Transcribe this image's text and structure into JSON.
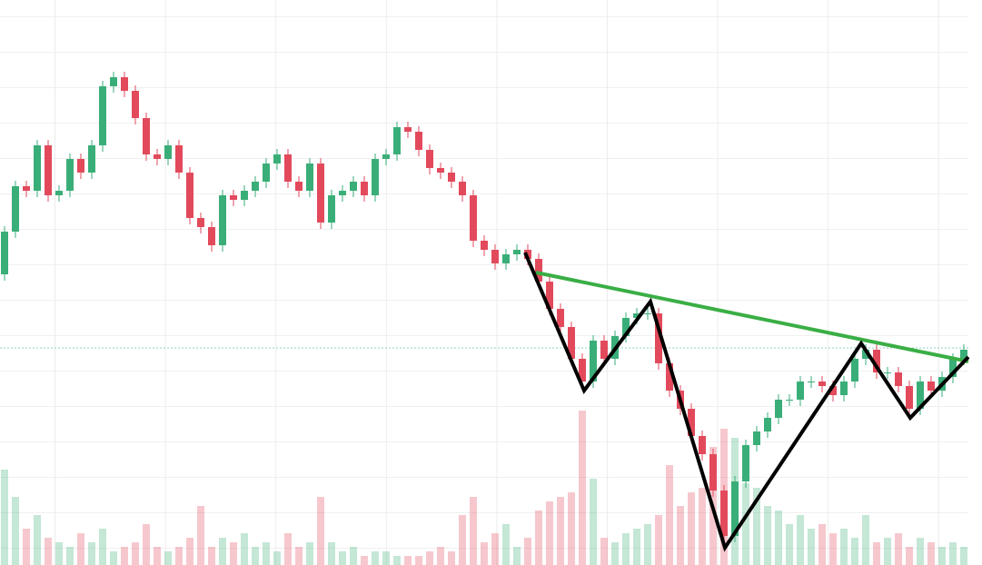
{
  "chart_data": {
    "type": "candlestick",
    "open": [
      320,
      367,
      417,
      412,
      462,
      407,
      412,
      447,
      432,
      462,
      527,
      537,
      522,
      492,
      452,
      447,
      462,
      432,
      382,
      372,
      352,
      407,
      402,
      412,
      422,
      442,
      452,
      422,
      412,
      442,
      377,
      407,
      412,
      422,
      407,
      447,
      452,
      482,
      477,
      457,
      437,
      432,
      422,
      407,
      357,
      347,
      332,
      342,
      347,
      337,
      312,
      282,
      262,
      227,
      202,
      247,
      227,
      252,
      272,
      277,
      277,
      222,
      192,
      172,
      142,
      122,
      82,
      32,
      92,
      132,
      147,
      162,
      182,
      182,
      202,
      202,
      197,
      187,
      202,
      227,
      237,
      212,
      212,
      197,
      172,
      202,
      192,
      207,
      227
    ],
    "high": [
      373,
      423,
      423,
      468,
      468,
      418,
      453,
      453,
      468,
      533,
      543,
      543,
      528,
      498,
      458,
      468,
      468,
      438,
      388,
      378,
      413,
      413,
      418,
      428,
      448,
      458,
      458,
      428,
      448,
      448,
      413,
      418,
      428,
      428,
      453,
      458,
      488,
      488,
      483,
      463,
      443,
      438,
      428,
      413,
      363,
      353,
      348,
      353,
      353,
      343,
      318,
      288,
      268,
      233,
      253,
      253,
      258,
      278,
      283,
      283,
      283,
      228,
      198,
      178,
      148,
      128,
      88,
      98,
      138,
      153,
      168,
      188,
      188,
      208,
      208,
      208,
      203,
      208,
      233,
      243,
      243,
      218,
      218,
      203,
      208,
      208,
      213,
      233,
      243
    ],
    "low": [
      313,
      360,
      405,
      405,
      400,
      400,
      405,
      425,
      425,
      455,
      520,
      515,
      485,
      445,
      440,
      440,
      425,
      375,
      365,
      345,
      345,
      395,
      395,
      405,
      415,
      435,
      415,
      405,
      405,
      370,
      370,
      400,
      405,
      400,
      400,
      440,
      445,
      470,
      450,
      430,
      425,
      415,
      400,
      350,
      340,
      325,
      325,
      335,
      330,
      305,
      275,
      255,
      220,
      195,
      195,
      220,
      220,
      245,
      265,
      270,
      215,
      185,
      165,
      135,
      115,
      75,
      25,
      25,
      85,
      125,
      140,
      155,
      175,
      175,
      195,
      190,
      180,
      180,
      195,
      220,
      205,
      205,
      190,
      165,
      165,
      185,
      185,
      200,
      220
    ],
    "close": [
      367,
      417,
      412,
      462,
      407,
      412,
      447,
      432,
      462,
      527,
      537,
      522,
      492,
      452,
      447,
      462,
      432,
      382,
      372,
      352,
      407,
      402,
      412,
      422,
      442,
      452,
      422,
      412,
      442,
      377,
      407,
      412,
      422,
      407,
      447,
      452,
      482,
      477,
      457,
      437,
      432,
      422,
      407,
      357,
      347,
      332,
      342,
      347,
      337,
      312,
      282,
      262,
      227,
      202,
      247,
      227,
      252,
      272,
      277,
      277,
      222,
      192,
      172,
      142,
      122,
      82,
      32,
      92,
      132,
      147,
      162,
      182,
      182,
      202,
      202,
      197,
      187,
      202,
      227,
      237,
      212,
      212,
      197,
      172,
      202,
      192,
      207,
      227,
      237
    ],
    "volume": [
      105,
      75,
      40,
      55,
      30,
      25,
      20,
      35,
      25,
      40,
      15,
      20,
      25,
      45,
      20,
      15,
      20,
      30,
      65,
      20,
      30,
      25,
      35,
      20,
      25,
      15,
      35,
      20,
      25,
      75,
      25,
      15,
      20,
      10,
      15,
      15,
      10,
      10,
      10,
      15,
      20,
      15,
      55,
      75,
      25,
      35,
      45,
      20,
      30,
      60,
      70,
      75,
      80,
      170,
      95,
      30,
      25,
      35,
      40,
      45,
      55,
      110,
      65,
      80,
      85,
      130,
      150,
      140,
      90,
      85,
      65,
      60,
      45,
      55,
      40,
      45,
      35,
      40,
      30,
      55,
      25,
      30,
      35,
      20,
      30,
      25,
      20,
      25,
      20
    ],
    "ylim": [
      0,
      622
    ],
    "y2lim": [
      0,
      622
    ],
    "up_color": "#3aae78",
    "down_color": "#e24a5c"
  }
}
